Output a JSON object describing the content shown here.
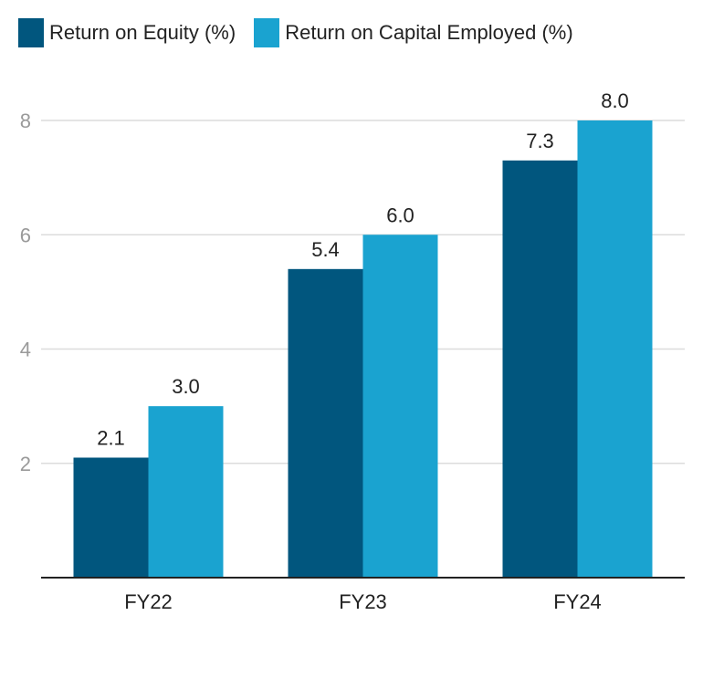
{
  "chart_data": {
    "type": "bar",
    "categories": [
      "FY22",
      "FY23",
      "FY24"
    ],
    "series": [
      {
        "name": "Return on Equity (%)",
        "values": [
          2.1,
          5.4,
          7.3
        ],
        "labels": [
          "2.1",
          "5.4",
          "7.3"
        ],
        "color": "#01567e"
      },
      {
        "name": "Return on Capital Employed (%)",
        "values": [
          3.0,
          6.0,
          8.0
        ],
        "labels": [
          "3.0",
          "6.0",
          "8.0"
        ],
        "color": "#1aa3d0"
      }
    ],
    "ylim": [
      0,
      8
    ],
    "yticks": [
      2,
      4,
      6,
      8
    ],
    "ytick_labels": [
      "2",
      "4",
      "6",
      "8"
    ],
    "grid": true,
    "legend_position": "top-left"
  }
}
